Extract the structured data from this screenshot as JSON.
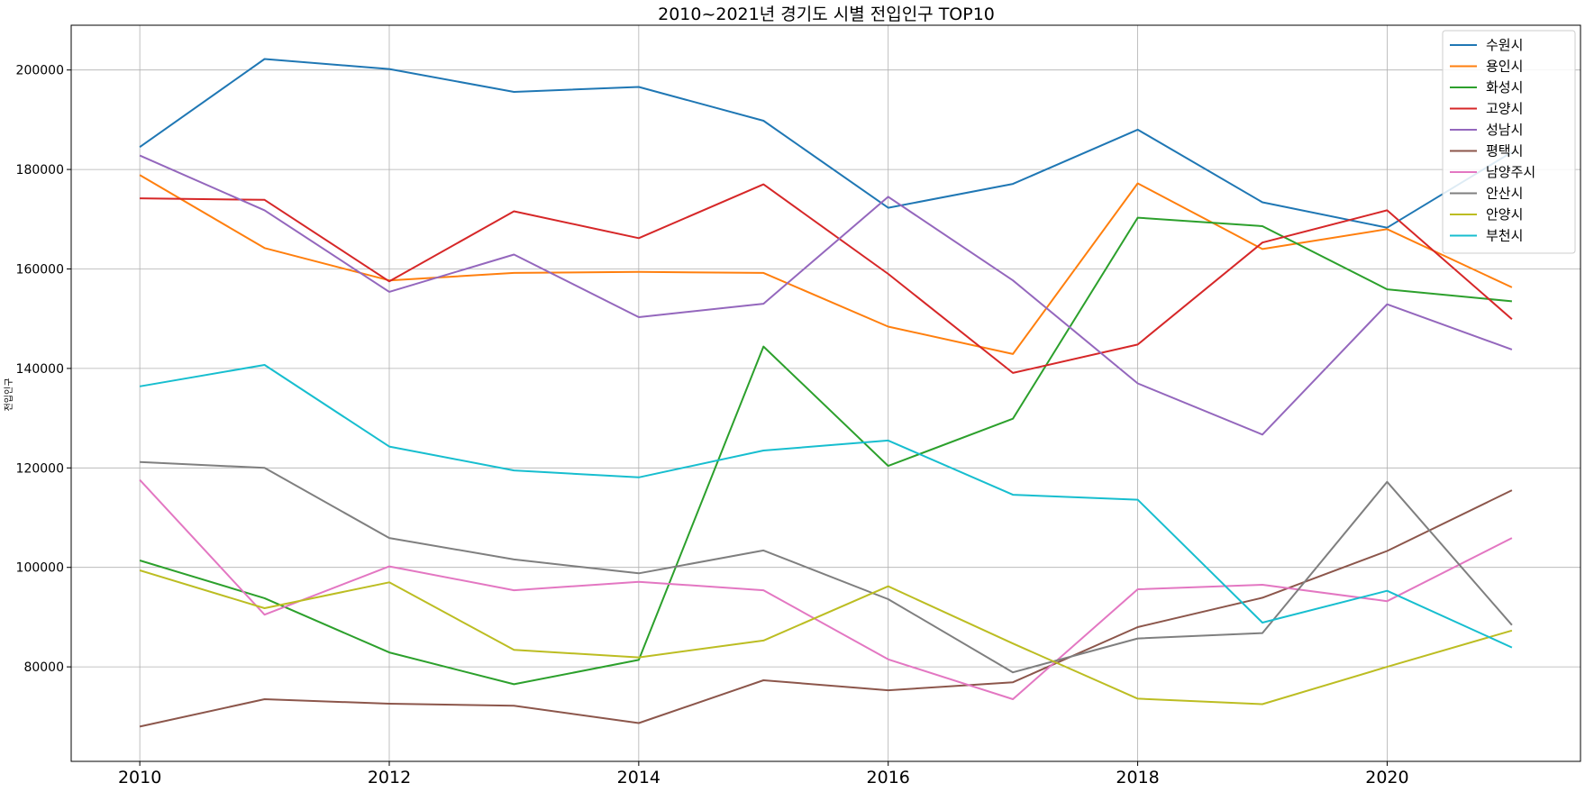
{
  "chart_data": {
    "type": "line",
    "title": "2010~2021년 경기도 시별 전입인구 TOP10",
    "xlabel": "",
    "ylabel": "전입인구",
    "x": [
      2010,
      2011,
      2012,
      2013,
      2014,
      2015,
      2016,
      2017,
      2018,
      2019,
      2020,
      2021
    ],
    "xticks": [
      "2010",
      "2012",
      "2014",
      "2016",
      "2018",
      "2020"
    ],
    "yticks": [
      "80000",
      "100000",
      "120000",
      "140000",
      "160000",
      "180000",
      "200000"
    ],
    "xlim": [
      2009.45,
      2021.55
    ],
    "ylim": [
      61000,
      209000
    ],
    "grid": true,
    "legend_position": "top-right",
    "series": [
      {
        "name": "수원시",
        "color": "#1f77b4",
        "values": [
          184500,
          202200,
          200200,
          195600,
          196600,
          189800,
          172300,
          177100,
          188000,
          173400,
          168300,
          183500
        ]
      },
      {
        "name": "용인시",
        "color": "#ff7f0e",
        "values": [
          178900,
          164200,
          157700,
          159200,
          159400,
          159200,
          148400,
          142900,
          177200,
          164000,
          168000,
          156300
        ]
      },
      {
        "name": "화성시",
        "color": "#2ca02c",
        "values": [
          101400,
          93800,
          82900,
          76500,
          81400,
          144400,
          120400,
          129900,
          170300,
          168600,
          155900,
          153500
        ]
      },
      {
        "name": "고양시",
        "color": "#d62728",
        "values": [
          174200,
          173900,
          157500,
          171600,
          166200,
          177000,
          159000,
          139100,
          144800,
          165300,
          171800,
          149900
        ]
      },
      {
        "name": "성남시",
        "color": "#9467bd",
        "values": [
          182800,
          171800,
          155400,
          162900,
          150300,
          153000,
          174500,
          157700,
          137000,
          126700,
          152900,
          143800
        ]
      },
      {
        "name": "평택시",
        "color": "#8c564b",
        "values": [
          68000,
          73500,
          72600,
          72200,
          68700,
          77300,
          75300,
          76900,
          88000,
          93900,
          103300,
          115500
        ]
      },
      {
        "name": "남양주시",
        "color": "#e377c2",
        "values": [
          117600,
          90500,
          100200,
          95400,
          97100,
          95400,
          81500,
          73500,
          95600,
          96500,
          93200,
          105900
        ]
      },
      {
        "name": "안산시",
        "color": "#7f7f7f",
        "values": [
          121200,
          120000,
          105900,
          101600,
          98800,
          103400,
          93600,
          78900,
          85700,
          86800,
          117200,
          88400
        ]
      },
      {
        "name": "안양시",
        "color": "#bcbd22",
        "values": [
          99400,
          91800,
          97000,
          83400,
          81900,
          85300,
          96200,
          84700,
          73600,
          72500,
          80000,
          87300
        ]
      },
      {
        "name": "부천시",
        "color": "#17becf",
        "values": [
          136400,
          140700,
          124300,
          119500,
          118100,
          123500,
          125500,
          114600,
          113600,
          88900,
          95300,
          83900
        ]
      }
    ]
  }
}
